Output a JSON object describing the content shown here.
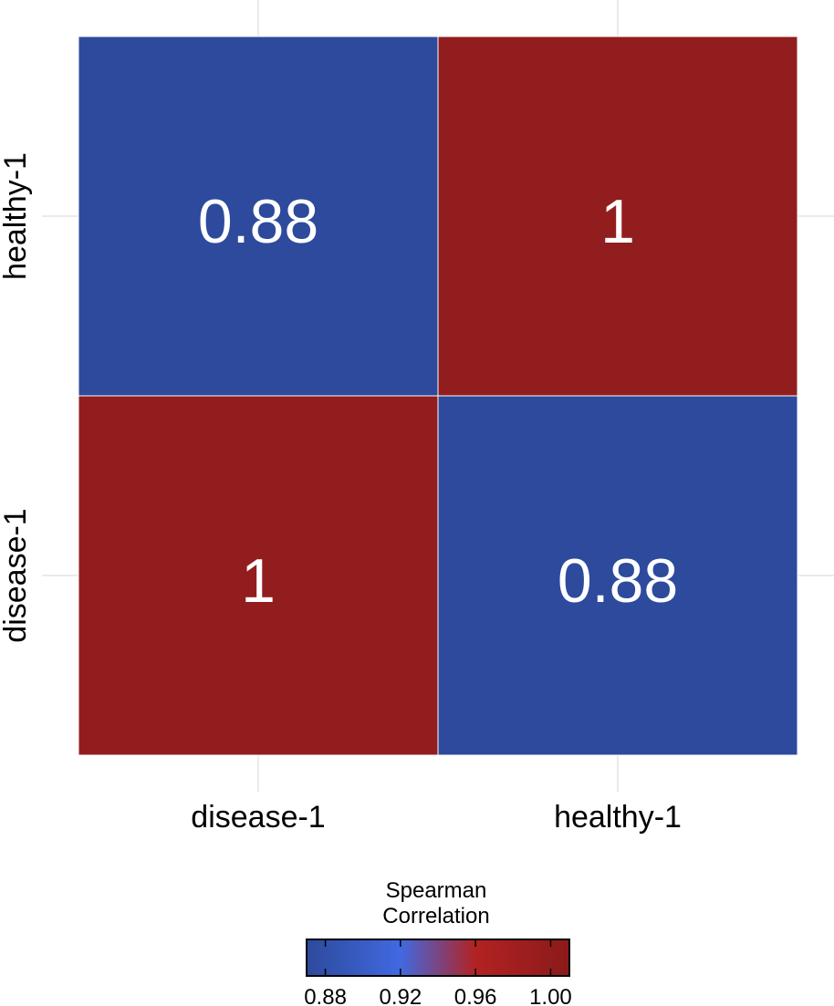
{
  "chart_data": {
    "type": "heatmap",
    "x_categories": [
      "disease-1",
      "healthy-1"
    ],
    "y_categories": [
      "disease-1",
      "healthy-1"
    ],
    "cells": [
      {
        "x": "disease-1",
        "y": "disease-1",
        "value": 1.0,
        "label": "1"
      },
      {
        "x": "healthy-1",
        "y": "disease-1",
        "value": 0.88,
        "label": "0.88"
      },
      {
        "x": "disease-1",
        "y": "healthy-1",
        "value": 0.88,
        "label": "0.88"
      },
      {
        "x": "healthy-1",
        "y": "healthy-1",
        "value": 1.0,
        "label": "1"
      }
    ],
    "legend": {
      "title_lines": [
        "Spearman",
        "Correlation"
      ],
      "placement": "bottom",
      "range": [
        0.87,
        1.01
      ],
      "ticks": [
        0.88,
        0.92,
        0.96,
        1.0
      ],
      "tick_labels": [
        "0.88",
        "0.92",
        "0.96",
        "1.00"
      ],
      "gradient_stops": [
        {
          "value": 0.87,
          "color": "#2d4a9c"
        },
        {
          "value": 0.92,
          "color": "#4169e1"
        },
        {
          "value": 0.96,
          "color": "#b22222"
        },
        {
          "value": 1.01,
          "color": "#8b1a1a"
        }
      ]
    },
    "colors": {
      "low": "#2d4a9c",
      "high": "#921d1f",
      "cell_text": "#ffffff",
      "grid": "#ebebeb"
    },
    "grid": true
  }
}
